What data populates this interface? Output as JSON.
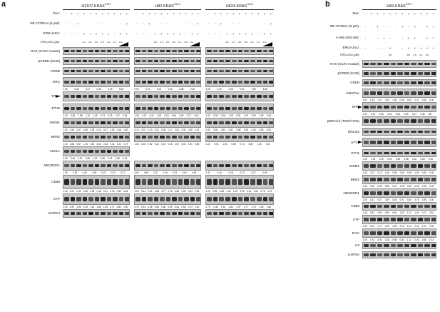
{
  "panel_a": {
    "letter": "a",
    "cell_lines": [
      "H2107-KRAS",
      "H82-KRAS",
      "H524-KRAS"
    ],
    "mutation_sup": "G12V",
    "conditions": [
      "Dox:",
      "SB-747651A (5 μM):",
      "ERGi-USU:",
      "ERGi-USU (μM):"
    ],
    "dox": [
      "-",
      "+",
      "+",
      "+",
      "+",
      "+",
      "+",
      "+",
      "+",
      "+",
      "+"
    ],
    "sb": [
      "-",
      "-",
      "+",
      "-",
      "-",
      "-",
      "-",
      "-",
      "-",
      "-",
      "+"
    ],
    "ergi": [
      "-",
      "-",
      "-",
      "+",
      "+",
      "+",
      "+",
      "+",
      "-",
      "+",
      "+"
    ],
    "ergi_um": [
      "",
      "",
      "",
      "0.2",
      "0.4",
      "0.6",
      "0.8",
      "1.0",
      "0.2",
      "0.4",
      ""
    ],
    "rows": [
      {
        "label": "RAS (G12V mutant)",
        "arrow": false,
        "quant": []
      },
      {
        "label": "pCREB (S133)",
        "arrow": false,
        "quant": []
      },
      {
        "label": "CREB",
        "arrow": false,
        "quant": []
      },
      {
        "label": "ERG",
        "arrow": false,
        "quant": [
          "1.00",
          "0.36",
          "0.47",
          "0.38",
          "0.29",
          "0.06",
          "0.00",
          "0.12",
          "0.04",
          "1.00",
          "6.45",
          "2.32",
          "1.53",
          "0.54",
          "0.08",
          "0.01",
          "7.86",
          "4.85"
        ]
      },
      {
        "label": "ETV4",
        "arrow": true,
        "quant": []
      },
      {
        "label": "ETV5",
        "arrow": false,
        "quant": [
          "1.00",
          "2.36",
          "1.88",
          "1.12",
          "1.46",
          "0.73",
          "0.33",
          "1.87",
          "0.83",
          "1.00",
          "1.03",
          "0.42",
          "0.18",
          "0.16",
          "0.06",
          "0.00",
          "0.27",
          "0.10",
          "1.00",
          "0.90",
          "1.26",
          "1.05",
          "0.91",
          "0.79",
          "0.95",
          "1.06",
          "0.63"
        ]
      },
      {
        "label": "INSM1",
        "arrow": false,
        "quant": [
          "1.00",
          "0.49",
          "0.87",
          "0.98",
          "0.28",
          "0.12",
          "0.07",
          "0.53",
          "0.18",
          "1.00",
          "0.19",
          "0.19",
          "0.23",
          "0.31",
          "0.36",
          "0.17",
          "0.02",
          "0.30",
          "0.26",
          "1.00",
          "0.32",
          "0.59",
          "0.52",
          "0.81",
          "0.98",
          "0.36",
          "0.34",
          "0.63",
          "0.52"
        ]
      },
      {
        "label": "BRN2",
        "arrow": false,
        "quant": [
          "1.00",
          "0.84",
          "0.87",
          "1.15",
          "0.80",
          "0.84",
          "0.84",
          "0.34",
          "1.22",
          "0.79",
          "1.00",
          "0.26",
          "0.52",
          "0.24",
          "0.24",
          "0.15",
          "0.57",
          "0.60",
          "1.00",
          "0.83",
          "1.01",
          "0.91",
          "1.03",
          "0.89",
          "0.74",
          "0.80",
          "1.08",
          "1.02"
        ]
      },
      {
        "label": "ASCL1",
        "arrow": false,
        "quant": [
          "1.00",
          "0.61",
          "0.61",
          "0.80",
          "0.51",
          "0.06",
          "0.01",
          "0.58",
          "0.43"
        ]
      },
      {
        "label": "NEUROD1",
        "arrow": false,
        "quant": [
          "1.00",
          "0.19",
          "0.40",
          "0.18",
          "0.22",
          "0.21",
          "0.17",
          "0.03",
          "0.49",
          "0.37",
          "1.00",
          "0.31",
          "0.61",
          "0.50",
          "0.32",
          "0.44",
          "0.18",
          "0.12",
          "0.27",
          "0.59"
        ]
      },
      {
        "label": "CD56",
        "arrow": false,
        "quant": [
          "1.00",
          "0.21",
          "0.34",
          "0.38",
          "0.36",
          "0.46",
          "0.41",
          "0.33",
          "0.34",
          "0.48",
          "1.00",
          "0.84",
          "0.84",
          "0.88",
          "0.77",
          "0.76",
          "0.68",
          "0.65",
          "0.63",
          "0.65",
          "1.00",
          "0.96",
          "0.68",
          "1.18",
          "1.39",
          "3.29",
          "3.42",
          "2.62",
          "0.75",
          "0.72"
        ]
      },
      {
        "label": "SYP",
        "arrow": false,
        "quant": [
          "1.00",
          "1.87",
          "1.96",
          "2.18",
          "1.63",
          "1.56",
          "1.06",
          "0.71",
          "0.82",
          "1.00",
          "0.73",
          "0.93",
          "0.68",
          "0.60",
          "0.68",
          "0.69",
          "0.61",
          "0.56",
          "0.74",
          "1.00",
          "0.79",
          "1.48",
          "1.32",
          "1.80",
          "1.97",
          "1.77",
          "1.76",
          "1.55",
          "1.68"
        ]
      },
      {
        "label": "GAPDH",
        "arrow": false,
        "quant": []
      }
    ]
  },
  "panel_b": {
    "letter": "b",
    "cell_line": "H82-KRAS",
    "mutation_sup": "G12V",
    "conditions": [
      "Dox:",
      "SB-747651A (5 μM):",
      "A-485 (400 nM):",
      "ERGi-USU:",
      "ERGi-USU (μM):"
    ],
    "dox": [
      "-",
      "+",
      "+",
      "+",
      "+",
      "+",
      "+",
      "+",
      "+",
      "+",
      "+",
      "+"
    ],
    "sb": [
      "-",
      "-",
      "+",
      "-",
      "-",
      "-",
      "+",
      "-",
      "+",
      "-",
      "+",
      "+"
    ],
    "a485": [
      "-",
      "-",
      "-",
      "+",
      "-",
      "-",
      "-",
      "+",
      "+",
      "-",
      "+",
      "+"
    ],
    "ergi": [
      "-",
      "-",
      "-",
      "-",
      "+",
      "-",
      "-",
      "+",
      "+",
      "+",
      "+",
      "+"
    ],
    "ergi_um": [
      "",
      "",
      "",
      "",
      "0.8",
      "",
      "",
      "0.8",
      "0.8",
      "0.2",
      "0.8",
      ""
    ],
    "rows": [
      {
        "label": "RAS (G12V mutant)",
        "arrow": false,
        "quant": []
      },
      {
        "label": "pCREB (S133)",
        "arrow": false,
        "quant": []
      },
      {
        "label": "CREB",
        "arrow": false,
        "quant": []
      },
      {
        "label": "H3K27ac",
        "arrow": false,
        "quant": [
          "1.00",
          "1.35",
          "1.47",
          "0.33",
          "1.30",
          "0.36",
          "0.32",
          "0.27",
          "0.26",
          "0.00"
        ]
      },
      {
        "label": "ERG",
        "arrow": true,
        "quant": [
          "1.00",
          "0.42",
          "0.98",
          "0.61",
          "0.55",
          "0.89",
          "0.47",
          "0.38",
          "NE"
        ]
      },
      {
        "label": "pERK1/2 (T202/Y204)",
        "arrow": false,
        "quant": []
      },
      {
        "label": "ERK1/2",
        "arrow": false,
        "quant": []
      },
      {
        "label": "ETV4",
        "arrow": true,
        "quant": []
      },
      {
        "label": "ETV5",
        "arrow": false,
        "quant": [
          "1.00",
          "1.05",
          "0.49",
          "0.09",
          "0.35",
          "0.08",
          "0.16",
          "0.08",
          "0.00"
        ]
      },
      {
        "label": "INSM1",
        "arrow": false,
        "quant": [
          "1.00",
          "0.13",
          "0.12",
          "1.00",
          "0.36",
          "1.36",
          "0.08",
          "1.00",
          "0.60",
          "0.26"
        ]
      },
      {
        "label": "BRN2",
        "arrow": false,
        "quant": [
          "1.00",
          "0.35",
          "0.62",
          "0.86",
          "0.42",
          "1.28",
          "0.52",
          "0.99",
          "1.06",
          "0.45"
        ]
      },
      {
        "label": "NEUROD1",
        "arrow": false,
        "quant": [
          "1.00",
          "0.31",
          "0.57",
          "0.59",
          "0.54",
          "0.97",
          "0.46",
          "0.76",
          "0.59",
          "0.30"
        ]
      },
      {
        "label": "CD56",
        "arrow": false,
        "quant": [
          "1.00",
          "0.82",
          "0.80",
          "0.83",
          "0.83",
          "1.02",
          "1.22",
          "1.06",
          "0.72",
          "0.81"
        ]
      },
      {
        "label": "SYP",
        "arrow": false,
        "quant": [
          "1.00",
          "1.04",
          "1.74",
          "2.19",
          "1.53",
          "2.12",
          "1.51",
          "2.41",
          "1.24",
          "0.90"
        ]
      },
      {
        "label": "MYC",
        "arrow": false,
        "quant": [
          "1.00",
          "0.74",
          "0.90",
          "0.18",
          "0.98",
          "0.83",
          "1.12",
          "0.40",
          "0.68",
          "0.14"
        ]
      },
      {
        "label": "H3",
        "arrow": false,
        "quant": []
      },
      {
        "label": "GAPDH",
        "arrow": false,
        "quant": []
      }
    ]
  }
}
